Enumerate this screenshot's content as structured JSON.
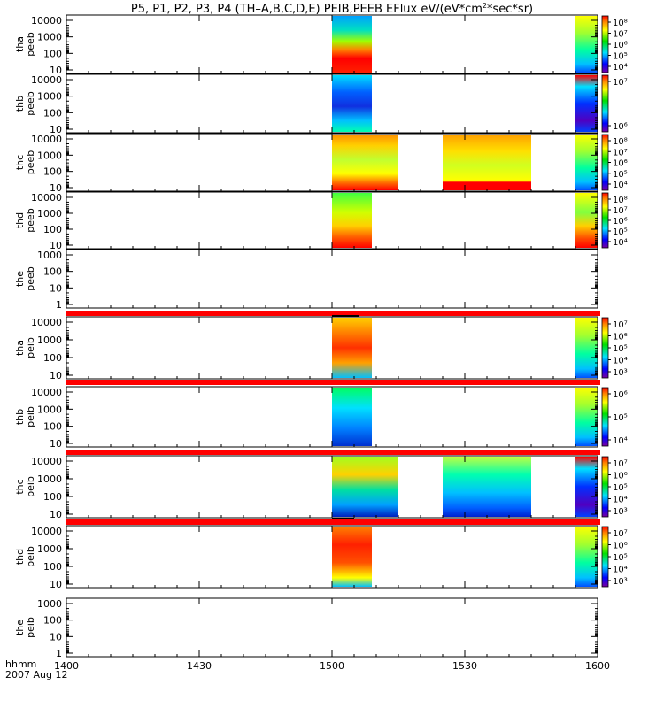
{
  "chart_data": {
    "type": "heatmap",
    "title": "P5, P1, P2, P3, P4 (TH–A,B,C,D,E) PEIB,PEEB EFlux eV/(eV*cm",
    "title_sup": "2",
    "title_tail": "*sec*sr)",
    "xaxis": {
      "label": "hhmm",
      "date": "2007 Aug 12",
      "range": [
        1400,
        1600
      ],
      "ticks": [
        "1400",
        "1430",
        "1500",
        "1530",
        "1600"
      ]
    },
    "colormap": "rainbow (purple-blue-cyan-green-yellow-red)",
    "panels": [
      {
        "probe": "tha",
        "product": "peeb",
        "yticks": [
          "10000",
          "1000",
          "100",
          "10"
        ],
        "cbar_ticks": [
          "10⁸",
          "10⁷",
          "10⁶",
          "10⁵",
          "10⁴"
        ],
        "intervals": [
          {
            "start": 1500,
            "end": 1509,
            "style": "tha_peeb"
          },
          {
            "start": 1555,
            "end": 1600,
            "style": "edge_green"
          }
        ]
      },
      {
        "probe": "thb",
        "product": "peeb",
        "yticks": [
          "10000",
          "1000",
          "100",
          "10"
        ],
        "cbar_ticks": [
          "10⁷",
          "10⁶"
        ],
        "intervals": [
          {
            "start": 1500,
            "end": 1509,
            "style": "thb_peeb"
          },
          {
            "start": 1555,
            "end": 1600,
            "style": "edge_blue"
          }
        ]
      },
      {
        "probe": "thc",
        "product": "peeb",
        "yticks": [
          "10000",
          "1000",
          "100",
          "10"
        ],
        "cbar_ticks": [
          "10⁸",
          "10⁷",
          "10⁶",
          "10⁵",
          "10⁴"
        ],
        "intervals": [
          {
            "start": 1500,
            "end": 1515,
            "style": "thc_peeb"
          },
          {
            "start": 1525,
            "end": 1545,
            "style": "thc_peeb_mid"
          },
          {
            "start": 1555,
            "end": 1600,
            "style": "edge_green"
          }
        ]
      },
      {
        "probe": "thd",
        "product": "peeb",
        "yticks": [
          "10000",
          "1000",
          "100",
          "10"
        ],
        "cbar_ticks": [
          "10⁸",
          "10⁷",
          "10⁶",
          "10⁵",
          "10⁴"
        ],
        "intervals": [
          {
            "start": 1500,
            "end": 1509,
            "style": "thd_peeb"
          },
          {
            "start": 1555,
            "end": 1600,
            "style": "edge_red"
          }
        ]
      },
      {
        "probe": "the",
        "product": "peeb",
        "yticks": [
          "1000",
          "100",
          "10",
          "1"
        ],
        "cbar_ticks": [],
        "intervals": []
      },
      {
        "probe": "tha",
        "product": "peib",
        "yticks": [
          "10000",
          "1000",
          "100",
          "10"
        ],
        "cbar_ticks": [
          "10⁷",
          "10⁶",
          "10⁵",
          "10⁴",
          "10³"
        ],
        "intervals": [
          {
            "start": 1500,
            "end": 1509,
            "style": "tha_peib"
          },
          {
            "start": 1555,
            "end": 1600,
            "style": "edge_green"
          }
        ]
      },
      {
        "probe": "thb",
        "product": "peib",
        "yticks": [
          "10000",
          "1000",
          "100",
          "10"
        ],
        "cbar_ticks": [
          "10⁶",
          "10⁵",
          "10⁴"
        ],
        "intervals": [
          {
            "start": 1500,
            "end": 1509,
            "style": "thb_peib"
          },
          {
            "start": 1555,
            "end": 1600,
            "style": "edge_green"
          }
        ]
      },
      {
        "probe": "thc",
        "product": "peib",
        "yticks": [
          "10000",
          "1000",
          "100",
          "10"
        ],
        "cbar_ticks": [
          "10⁷",
          "10⁶",
          "10⁵",
          "10⁴",
          "10³"
        ],
        "intervals": [
          {
            "start": 1500,
            "end": 1515,
            "style": "thc_peib"
          },
          {
            "start": 1525,
            "end": 1545,
            "style": "thc_peib_mid"
          },
          {
            "start": 1555,
            "end": 1600,
            "style": "edge_blue"
          }
        ]
      },
      {
        "probe": "thd",
        "product": "peib",
        "yticks": [
          "10000",
          "1000",
          "100",
          "10"
        ],
        "cbar_ticks": [
          "10⁷",
          "10⁶",
          "10⁵",
          "10⁴",
          "10³"
        ],
        "intervals": [
          {
            "start": 1500,
            "end": 1509,
            "style": "thd_peib"
          },
          {
            "start": 1555,
            "end": 1600,
            "style": "edge_green"
          }
        ]
      },
      {
        "probe": "the",
        "product": "peib",
        "yticks": [
          "1000",
          "100",
          "10",
          "1"
        ],
        "cbar_ticks": [],
        "intervals": []
      }
    ],
    "colors": {
      "separator": "#ff0000",
      "axis": "#000000"
    }
  }
}
